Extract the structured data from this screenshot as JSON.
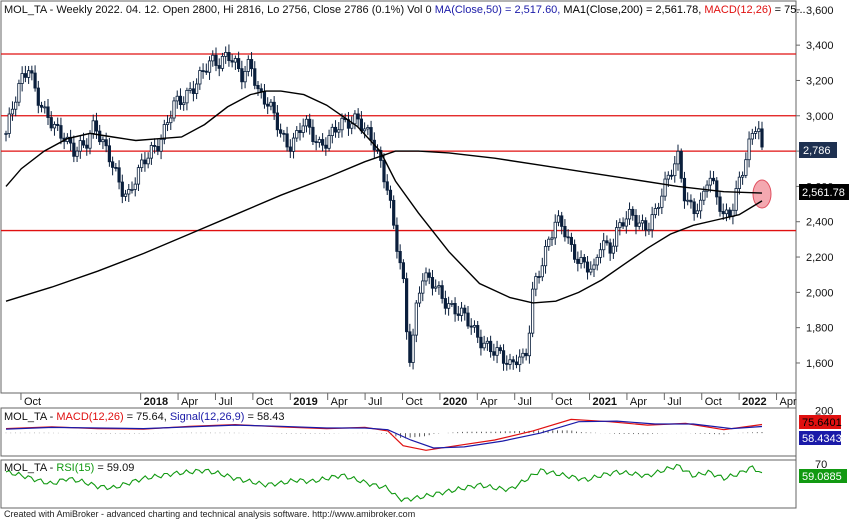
{
  "header": {
    "symbol": "MOL_TA",
    "info": " - Weekly 2022. 04. 12. Open 2800, Hi 2816, Lo 2756, Close 2786 (0.1%) Vol 0 ",
    "ma50": "MA(Close,50) = 2,517.60, ",
    "ma200": "MA1(Close,200) = 2,561.78, ",
    "macd_tag": "MACD(12,26)",
    "trailing": " = 75..."
  },
  "macd_header": {
    "symbol": "MOL_TA",
    "sep": " - ",
    "macd": "MACD(12,26)",
    "macd_val": " = 75.64, ",
    "signal": "Signal(12,26,9)",
    "signal_val": " = 58.43"
  },
  "rsi_header": {
    "symbol": "MOL_TA",
    "sep": " - ",
    "rsi": "RSI(15)",
    "rsi_val": " = 59.09"
  },
  "footer": "Created with AmiBroker - advanced charting and technical analysis software. http://www.amibroker.com",
  "badges": {
    "close": "2,786",
    "ma200": "2,561.78",
    "macd": "75.6401",
    "signal": "58.4343",
    "rsi": "59.0885"
  },
  "colors": {
    "price": "#0a1f3c",
    "ma": "#000000",
    "hline": "#e01010",
    "macd": "#e01010",
    "signal": "#1a1aa8",
    "rsi": "#119911",
    "badge_close": "#1e3050",
    "badge_ma": "#000000",
    "badge_macd": "#e01010",
    "badge_signal": "#1a1aa8",
    "badge_rsi": "#119911",
    "ellipse": "#f4a8b0"
  },
  "chart_data": {
    "type": "candlestick",
    "price_axis": {
      "ylim": [
        1430,
        3650
      ],
      "ticks": [
        1600,
        1800,
        2000,
        2200,
        2400,
        2600,
        2800,
        3000,
        3200,
        3400,
        3600
      ],
      "tick_labels": [
        "1,600",
        "1,800",
        "2,000",
        "2,200",
        "2,400",
        "2,600",
        "2,800",
        "3,000",
        "3,200",
        "3,400",
        "3,600"
      ]
    },
    "time_axis": {
      "labels": [
        "Oct",
        "2018",
        "Apr",
        "Jul",
        "Oct",
        "2019",
        "Apr",
        "Jul",
        "Oct",
        "2020",
        "Apr",
        "Jul",
        "Oct",
        "2021",
        "Apr",
        "Jul",
        "Oct",
        "2022",
        "Apr"
      ],
      "bold": [
        false,
        true,
        false,
        false,
        false,
        true,
        false,
        false,
        false,
        true,
        false,
        false,
        false,
        true,
        false,
        false,
        false,
        true,
        false
      ],
      "year_index": [
        0.2,
        1,
        1.25,
        1.5,
        1.75,
        2,
        2.25,
        2.5,
        2.75,
        3,
        3.25,
        3.5,
        3.75,
        4,
        4.25,
        4.5,
        4.75,
        5,
        5.25
      ]
    },
    "horizontal_lines": [
      3350,
      3000,
      2800,
      2350
    ],
    "close_path": [
      [
        0.0,
        2900
      ],
      [
        0.05,
        3050
      ],
      [
        0.1,
        3200
      ],
      [
        0.15,
        3300
      ],
      [
        0.2,
        3120
      ],
      [
        0.25,
        3000
      ],
      [
        0.3,
        2950
      ],
      [
        0.38,
        2900
      ],
      [
        0.45,
        2780
      ],
      [
        0.52,
        2830
      ],
      [
        0.58,
        2980
      ],
      [
        0.63,
        2850
      ],
      [
        0.7,
        2700
      ],
      [
        0.75,
        2600
      ],
      [
        0.8,
        2560
      ],
      [
        0.85,
        2650
      ],
      [
        0.9,
        2720
      ],
      [
        0.95,
        2800
      ],
      [
        1.0,
        2860
      ],
      [
        1.05,
        2950
      ],
      [
        1.1,
        3050
      ],
      [
        1.15,
        3080
      ],
      [
        1.2,
        3150
      ],
      [
        1.25,
        3200
      ],
      [
        1.3,
        3250
      ],
      [
        1.35,
        3300
      ],
      [
        1.4,
        3310
      ],
      [
        1.45,
        3370
      ],
      [
        1.5,
        3280
      ],
      [
        1.55,
        3200
      ],
      [
        1.6,
        3320
      ],
      [
        1.65,
        3150
      ],
      [
        1.7,
        3080
      ],
      [
        1.75,
        3000
      ],
      [
        1.8,
        2900
      ],
      [
        1.85,
        2840
      ],
      [
        1.9,
        2880
      ],
      [
        1.95,
        2950
      ],
      [
        2.0,
        2900
      ],
      [
        2.05,
        2850
      ],
      [
        2.1,
        2860
      ],
      [
        2.15,
        2900
      ],
      [
        2.2,
        2950
      ],
      [
        2.25,
        2980
      ],
      [
        2.3,
        3000
      ],
      [
        2.35,
        2900
      ],
      [
        2.4,
        2850
      ],
      [
        2.45,
        2750
      ],
      [
        2.5,
        2600
      ],
      [
        2.55,
        2300
      ],
      [
        2.6,
        2050
      ],
      [
        2.62,
        1800
      ],
      [
        2.65,
        1600
      ],
      [
        2.68,
        1900
      ],
      [
        2.72,
        2100
      ],
      [
        2.78,
        2050
      ],
      [
        2.85,
        1980
      ],
      [
        2.95,
        1900
      ],
      [
        3.05,
        1800
      ],
      [
        3.15,
        1700
      ],
      [
        3.2,
        1650
      ],
      [
        3.3,
        1600
      ],
      [
        3.35,
        1650
      ],
      [
        3.4,
        1600
      ],
      [
        3.43,
        1800
      ],
      [
        3.45,
        2000
      ],
      [
        3.5,
        2150
      ],
      [
        3.55,
        2300
      ],
      [
        3.6,
        2400
      ],
      [
        3.65,
        2350
      ],
      [
        3.7,
        2250
      ],
      [
        3.75,
        2200
      ],
      [
        3.8,
        2150
      ],
      [
        3.85,
        2100
      ],
      [
        3.9,
        2300
      ],
      [
        3.95,
        2250
      ],
      [
        4.0,
        2350
      ],
      [
        4.05,
        2400
      ],
      [
        4.1,
        2430
      ],
      [
        4.15,
        2400
      ],
      [
        4.2,
        2380
      ],
      [
        4.25,
        2430
      ],
      [
        4.3,
        2560
      ],
      [
        4.35,
        2700
      ],
      [
        4.4,
        2780
      ],
      [
        4.45,
        2500
      ],
      [
        4.5,
        2450
      ],
      [
        4.55,
        2500
      ],
      [
        4.6,
        2700
      ],
      [
        4.65,
        2550
      ],
      [
        4.7,
        2400
      ],
      [
        4.75,
        2460
      ],
      [
        4.8,
        2650
      ],
      [
        4.85,
        2780
      ],
      [
        4.88,
        2870
      ],
      [
        4.92,
        2950
      ],
      [
        4.95,
        2786
      ]
    ],
    "ma50_path": [
      [
        0.0,
        2600
      ],
      [
        0.1,
        2700
      ],
      [
        0.25,
        2800
      ],
      [
        0.4,
        2870
      ],
      [
        0.55,
        2900
      ],
      [
        0.7,
        2880
      ],
      [
        0.85,
        2860
      ],
      [
        1.0,
        2870
      ],
      [
        1.15,
        2880
      ],
      [
        1.3,
        2950
      ],
      [
        1.45,
        3050
      ],
      [
        1.6,
        3120
      ],
      [
        1.7,
        3140
      ],
      [
        1.8,
        3140
      ],
      [
        1.95,
        3120
      ],
      [
        2.1,
        3060
      ],
      [
        2.3,
        2940
      ],
      [
        2.45,
        2800
      ],
      [
        2.55,
        2630
      ],
      [
        2.7,
        2450
      ],
      [
        2.9,
        2230
      ],
      [
        3.1,
        2050
      ],
      [
        3.3,
        1970
      ],
      [
        3.45,
        1940
      ],
      [
        3.6,
        1950
      ],
      [
        3.75,
        2000
      ],
      [
        3.9,
        2070
      ],
      [
        4.05,
        2160
      ],
      [
        4.2,
        2250
      ],
      [
        4.35,
        2330
      ],
      [
        4.5,
        2380
      ],
      [
        4.65,
        2410
      ],
      [
        4.8,
        2440
      ],
      [
        4.95,
        2518
      ]
    ],
    "ma200_path": [
      [
        0.0,
        1950
      ],
      [
        0.3,
        2030
      ],
      [
        0.6,
        2120
      ],
      [
        0.9,
        2220
      ],
      [
        1.2,
        2330
      ],
      [
        1.5,
        2440
      ],
      [
        1.8,
        2550
      ],
      [
        2.1,
        2650
      ],
      [
        2.35,
        2740
      ],
      [
        2.55,
        2800
      ],
      [
        2.7,
        2800
      ],
      [
        2.9,
        2790
      ],
      [
        3.2,
        2760
      ],
      [
        3.5,
        2720
      ],
      [
        3.8,
        2680
      ],
      [
        4.1,
        2640
      ],
      [
        4.4,
        2600
      ],
      [
        4.7,
        2570
      ],
      [
        4.95,
        2562
      ]
    ],
    "macd_series": [
      [
        0.0,
        40
      ],
      [
        0.3,
        55
      ],
      [
        0.6,
        40
      ],
      [
        0.9,
        35
      ],
      [
        1.2,
        60
      ],
      [
        1.5,
        75
      ],
      [
        1.8,
        55
      ],
      [
        2.1,
        40
      ],
      [
        2.35,
        50
      ],
      [
        2.5,
        20
      ],
      [
        2.6,
        -110
      ],
      [
        2.75,
        -150
      ],
      [
        2.95,
        -110
      ],
      [
        3.2,
        -60
      ],
      [
        3.45,
        20
      ],
      [
        3.7,
        120
      ],
      [
        3.95,
        100
      ],
      [
        4.2,
        70
      ],
      [
        4.45,
        85
      ],
      [
        4.7,
        30
      ],
      [
        4.95,
        75.64
      ]
    ],
    "signal_series": [
      [
        0.0,
        35
      ],
      [
        0.3,
        50
      ],
      [
        0.6,
        45
      ],
      [
        0.9,
        40
      ],
      [
        1.2,
        55
      ],
      [
        1.5,
        70
      ],
      [
        1.8,
        60
      ],
      [
        2.1,
        45
      ],
      [
        2.35,
        45
      ],
      [
        2.5,
        30
      ],
      [
        2.65,
        -60
      ],
      [
        2.8,
        -130
      ],
      [
        3.0,
        -120
      ],
      [
        3.25,
        -70
      ],
      [
        3.5,
        0
      ],
      [
        3.75,
        100
      ],
      [
        4.0,
        105
      ],
      [
        4.25,
        80
      ],
      [
        4.5,
        80
      ],
      [
        4.75,
        40
      ],
      [
        4.95,
        58.43
      ]
    ],
    "macd_axis": {
      "ylim": [
        -200,
        220
      ],
      "ticks": [
        200
      ],
      "tick_labels": [
        "200"
      ]
    },
    "rsi_series": [
      [
        0.0,
        60
      ],
      [
        0.1,
        56
      ],
      [
        0.2,
        50
      ],
      [
        0.3,
        45
      ],
      [
        0.4,
        52
      ],
      [
        0.5,
        48
      ],
      [
        0.6,
        42
      ],
      [
        0.7,
        40
      ],
      [
        0.8,
        46
      ],
      [
        0.9,
        52
      ],
      [
        1.0,
        55
      ],
      [
        1.1,
        58
      ],
      [
        1.2,
        60
      ],
      [
        1.3,
        62
      ],
      [
        1.4,
        58
      ],
      [
        1.5,
        52
      ],
      [
        1.6,
        48
      ],
      [
        1.7,
        44
      ],
      [
        1.8,
        46
      ],
      [
        1.9,
        50
      ],
      [
        2.0,
        48
      ],
      [
        2.1,
        52
      ],
      [
        2.2,
        56
      ],
      [
        2.3,
        50
      ],
      [
        2.4,
        44
      ],
      [
        2.5,
        40
      ],
      [
        2.55,
        30
      ],
      [
        2.6,
        25
      ],
      [
        2.7,
        28
      ],
      [
        2.8,
        32
      ],
      [
        2.9,
        36
      ],
      [
        3.0,
        40
      ],
      [
        3.1,
        44
      ],
      [
        3.2,
        40
      ],
      [
        3.3,
        38
      ],
      [
        3.4,
        50
      ],
      [
        3.5,
        62
      ],
      [
        3.6,
        58
      ],
      [
        3.7,
        54
      ],
      [
        3.8,
        50
      ],
      [
        3.9,
        56
      ],
      [
        4.0,
        60
      ],
      [
        4.1,
        58
      ],
      [
        4.2,
        55
      ],
      [
        4.3,
        62
      ],
      [
        4.4,
        68
      ],
      [
        4.5,
        55
      ],
      [
        4.6,
        60
      ],
      [
        4.7,
        52
      ],
      [
        4.8,
        58
      ],
      [
        4.88,
        66
      ],
      [
        4.95,
        59.09
      ]
    ],
    "rsi_axis": {
      "ylim": [
        15,
        75
      ],
      "ticks": [
        70
      ],
      "tick_labels": [
        "70"
      ]
    }
  }
}
